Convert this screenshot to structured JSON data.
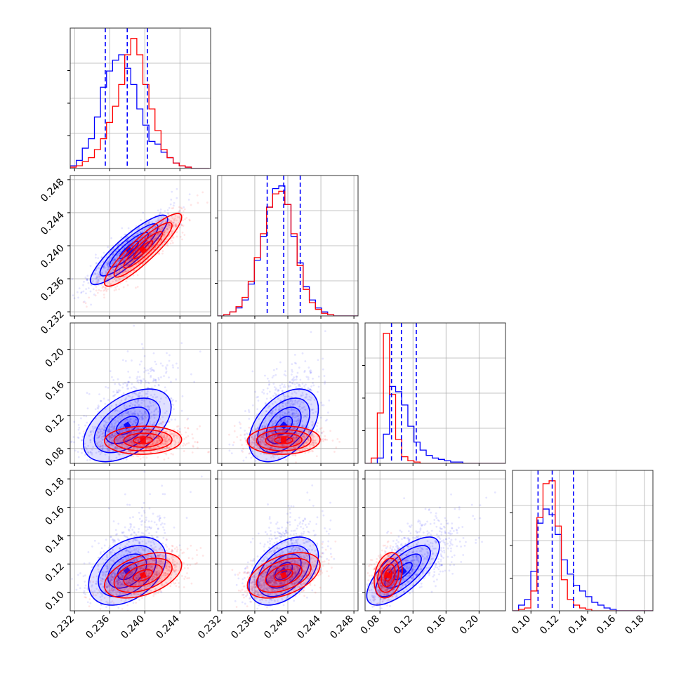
{
  "chart_data": {
    "type": "corner",
    "title": "",
    "grid": true,
    "colors": {
      "blue": "#0000ff",
      "red": "#ff0000"
    },
    "parameters": [
      {
        "range": [
          0.2315,
          0.2475
        ],
        "ticks": [
          0.232,
          0.236,
          0.24,
          0.244
        ],
        "tick_labels": [
          "0.232",
          "0.236",
          "0.240",
          "0.244"
        ]
      },
      {
        "range": [
          0.2315,
          0.2485
        ],
        "ticks": [
          0.232,
          0.236,
          0.24,
          0.244,
          0.248
        ],
        "tick_labels": [
          "0.232",
          "0.236",
          "0.240",
          "0.244",
          "0.248"
        ]
      },
      {
        "range": [
          0.062,
          0.232
        ],
        "ticks": [
          0.08,
          0.12,
          0.16,
          0.2
        ],
        "tick_labels": [
          "0.08",
          "0.12",
          "0.16",
          "0.20"
        ]
      },
      {
        "range": [
          0.087,
          0.186
        ],
        "ticks": [
          0.1,
          0.12,
          0.14,
          0.16,
          0.18
        ],
        "tick_labels": [
          "0.10",
          "0.12",
          "0.14",
          "0.16",
          "0.18"
        ]
      }
    ],
    "row_labels": [
      null,
      {
        "ticks": [
          0.232,
          0.236,
          0.24,
          0.244,
          0.248
        ],
        "tick_labels": [
          "0.232",
          "0.236",
          "0.240",
          "0.244",
          "0.248"
        ]
      },
      {
        "ticks": [
          0.08,
          0.12,
          0.16,
          0.2
        ],
        "tick_labels": [
          "0.08",
          "0.12",
          "0.16",
          "0.20"
        ]
      },
      {
        "ticks": [
          0.1,
          0.12,
          0.14,
          0.16,
          0.18
        ],
        "tick_labels": [
          "0.10",
          "0.12",
          "0.14",
          "0.16",
          "0.18"
        ]
      }
    ],
    "quantile_lines": [
      [
        0.2355,
        0.238,
        0.2403
      ],
      [
        0.2375,
        0.2395,
        0.2415
      ],
      [
        0.094,
        0.106,
        0.124
      ],
      [
        0.105,
        0.115,
        0.13
      ]
    ],
    "series": [
      {
        "color": "#0000ff",
        "histograms": [
          {
            "bin_start": 0.2315,
            "bin_width": 0.00069,
            "counts": [
              2,
              6,
              15,
              22,
              38,
              60,
              72,
              80,
              84,
              74,
              62,
              44,
              32,
              20,
              18,
              12,
              8,
              4,
              2,
              1,
              0,
              0,
              0
            ]
          },
          {
            "bin_start": 0.2315,
            "bin_width": 0.00074,
            "counts": [
              0,
              1,
              3,
              6,
              12,
              24,
              42,
              60,
              82,
              96,
              98,
              84,
              60,
              40,
              22,
              12,
              6,
              3,
              1,
              0,
              0,
              0,
              0
            ]
          },
          {
            "bin_start": 0.062,
            "bin_width": 0.0074,
            "counts": [
              0,
              0,
              4,
              22,
              58,
              54,
              44,
              28,
              16,
              10,
              6,
              4,
              3,
              2,
              1,
              1,
              0,
              0,
              0,
              0,
              0,
              0,
              0
            ]
          },
          {
            "bin_start": 0.087,
            "bin_width": 0.0043,
            "counts": [
              0,
              4,
              8,
              28,
              62,
              72,
              68,
              54,
              36,
              26,
              18,
              14,
              10,
              6,
              4,
              2,
              1,
              0,
              0,
              0,
              0,
              0,
              0
            ]
          }
        ],
        "pairs": {
          "1-0": {
            "mean": [
              0.2382,
              0.2395
            ],
            "sd": [
              0.0022,
              0.0021
            ],
            "rho": 0.88
          },
          "2-0": {
            "mean": [
              0.238,
              0.108
            ],
            "sd": [
              0.0025,
              0.022
            ],
            "rho": 0.5
          },
          "2-1": {
            "mean": [
              0.2395,
              0.108
            ],
            "sd": [
              0.0021,
              0.022
            ],
            "rho": 0.45
          },
          "3-0": {
            "mean": [
              0.238,
              0.115
            ],
            "sd": [
              0.0022,
              0.012
            ],
            "rho": 0.4
          },
          "3-1": {
            "mean": [
              0.2395,
              0.115
            ],
            "sd": [
              0.0021,
              0.012
            ],
            "rho": 0.45
          },
          "3-2": {
            "mean": [
              0.108,
              0.115
            ],
            "sd": [
              0.022,
              0.012
            ],
            "rho": 0.72
          }
        }
      },
      {
        "color": "#ff0000",
        "histograms": [
          {
            "bin_start": 0.2315,
            "bin_width": 0.00069,
            "counts": [
              1,
              2,
              5,
              8,
              14,
              22,
              34,
              46,
              62,
              84,
              96,
              84,
              62,
              44,
              28,
              14,
              8,
              4,
              2,
              1,
              0,
              0,
              0
            ]
          },
          {
            "bin_start": 0.2315,
            "bin_width": 0.00074,
            "counts": [
              0,
              1,
              3,
              7,
              14,
              26,
              44,
              62,
              82,
              92,
              94,
              84,
              62,
              38,
              20,
              10,
              5,
              2,
              1,
              0,
              0,
              0,
              0
            ]
          },
          {
            "bin_start": 0.062,
            "bin_width": 0.0074,
            "counts": [
              0,
              4,
              38,
              98,
              52,
              18,
              5,
              2,
              1,
              0,
              0,
              0,
              0,
              0,
              0,
              0,
              0,
              0,
              0,
              0,
              0,
              0,
              0
            ]
          },
          {
            "bin_start": 0.087,
            "bin_width": 0.0043,
            "counts": [
              0,
              1,
              2,
              14,
              66,
              90,
              92,
              60,
              22,
              8,
              4,
              2,
              1,
              0,
              0,
              0,
              0,
              0,
              0,
              0,
              0,
              0,
              0
            ]
          }
        ],
        "pairs": {
          "1-0": {
            "mean": [
              0.2398,
              0.2395
            ],
            "sd": [
              0.0022,
              0.0022
            ],
            "rho": 0.9
          },
          "2-0": {
            "mean": [
              0.2398,
              0.09
            ],
            "sd": [
              0.0022,
              0.0085
            ],
            "rho": 0.05
          },
          "2-1": {
            "mean": [
              0.2395,
              0.09
            ],
            "sd": [
              0.0022,
              0.0085
            ],
            "rho": 0.05
          },
          "3-0": {
            "mean": [
              0.2398,
              0.112
            ],
            "sd": [
              0.0022,
              0.008
            ],
            "rho": 0.45
          },
          "3-1": {
            "mean": [
              0.2395,
              0.112
            ],
            "sd": [
              0.0022,
              0.008
            ],
            "rho": 0.45
          },
          "3-2": {
            "mean": [
              0.09,
              0.112
            ],
            "sd": [
              0.0085,
              0.008
            ],
            "rho": 0.25
          }
        }
      }
    ]
  }
}
